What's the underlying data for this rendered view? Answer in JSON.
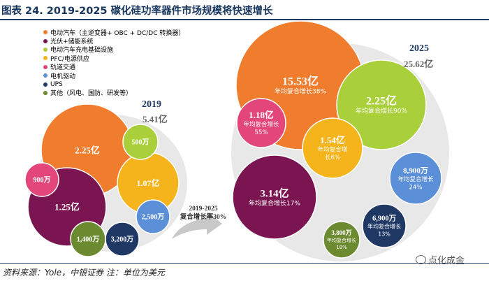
{
  "header": {
    "title": "图表 24. 2019-2025 碳化硅功率器件市场规模将快速增长"
  },
  "footer": {
    "source": "资料来源：Yole，中银证券 注：单位为美元",
    "watermark": "点化成金"
  },
  "legend": [
    {
      "label": "电动汽车（主逆变器+ OBC + DC/DC 转换器）",
      "color": "#f07d2e"
    },
    {
      "label": "光伏+储能系统",
      "color": "#7a1552"
    },
    {
      "label": "电动汽车充电基础设施",
      "color": "#a9cf3b"
    },
    {
      "label": "PFC/电源供应",
      "color": "#f5b31c"
    },
    {
      "label": "轨道交通",
      "color": "#e2467a"
    },
    {
      "label": "电机驱动",
      "color": "#5b8fd8"
    },
    {
      "label": "UPS",
      "color": "#1f3864"
    },
    {
      "label": "其他（风电、国防、研发等）",
      "color": "#6c8a2f"
    }
  ],
  "chart_data": [
    {
      "type": "bubble",
      "title": "2019",
      "total": "5.41亿",
      "segments": [
        {
          "category": "电动汽车（主逆变器+ OBC + DC/DC 转换器）",
          "value": "2.25亿",
          "color": "#f07d2e"
        },
        {
          "category": "光伏+储能系统",
          "value": "1.25亿",
          "color": "#7a1552"
        },
        {
          "category": "PFC/电源供应",
          "value": "1.07亿",
          "color": "#f5b31c"
        },
        {
          "category": "电动汽车充电基础设施",
          "value": "500万",
          "color": "#a9cf3b"
        },
        {
          "category": "轨道交通",
          "value": "900万",
          "color": "#e2467a"
        },
        {
          "category": "电机驱动",
          "value": "2,500万",
          "color": "#5b8fd8"
        },
        {
          "category": "UPS",
          "value": "3,200万",
          "color": "#1f3864"
        },
        {
          "category": "其他（风电、国防、研发等）",
          "value": "1,400万",
          "color": "#6c8a2f"
        }
      ]
    },
    {
      "type": "bubble",
      "title": "2025",
      "total": "25.62亿",
      "segments": [
        {
          "category": "电动汽车（主逆变器+ OBC + DC/DC 转换器）",
          "value": "15.53亿",
          "growth": "年均复合增长38%",
          "color": "#f07d2e"
        },
        {
          "category": "电动汽车充电基础设施",
          "value": "2.25亿",
          "growth": "年均复合增长90%",
          "color": "#a9cf3b"
        },
        {
          "category": "轨道交通",
          "value": "1.18亿",
          "growth": "年均复合增长55%",
          "color": "#e2467a"
        },
        {
          "category": "PFC/电源供应",
          "value": "1.54亿",
          "growth": "年均复合增长6%",
          "color": "#f5b31c"
        },
        {
          "category": "光伏+储能系统",
          "value": "3.14亿",
          "growth": "年均复合增长17%",
          "color": "#7a1552"
        },
        {
          "category": "电机驱动",
          "value": "8,900万",
          "growth": "年均复合增长24%",
          "color": "#5b8fd8"
        },
        {
          "category": "UPS",
          "value": "6,900万",
          "growth": "年均复合增长13%",
          "color": "#1f3864"
        },
        {
          "category": "其他（风电、国防、研发等）",
          "value": "3,800万",
          "growth": "年均复合增长18%",
          "color": "#6c8a2f"
        }
      ]
    }
  ],
  "arrow": {
    "line1": "2019-2025",
    "line2": "复合增长率30%"
  }
}
